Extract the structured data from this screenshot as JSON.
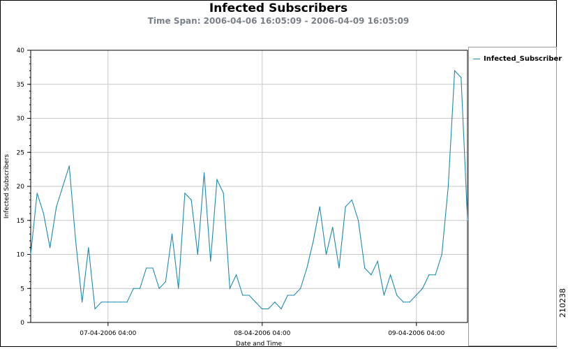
{
  "chart_data": {
    "type": "line",
    "title": "Infected Subscribers",
    "subtitle": "Time Span: 2006-04-06 16:05:09 - 2006-04-09 16:05:09",
    "xlabel": "Date and Time",
    "ylabel": "Infected Subscribers",
    "ylim": [
      0,
      40
    ],
    "yticks": [
      "0",
      "5",
      "10",
      "15",
      "20",
      "25",
      "30",
      "35",
      "40"
    ],
    "xticks": [
      "07-04-2006 04:00",
      "08-04-2006 04:00",
      "09-04-2006 04:00"
    ],
    "grid": true,
    "legend_position": "right",
    "series": [
      {
        "name": "Infected_Subscriber",
        "color": "#1a8bb0",
        "values": [
          10,
          19,
          16,
          11,
          17,
          20,
          23,
          12,
          3,
          11,
          2,
          3,
          3,
          3,
          3,
          3,
          5,
          5,
          8,
          8,
          5,
          6,
          13,
          5,
          19,
          18,
          10,
          22,
          9,
          21,
          19,
          5,
          7,
          4,
          4,
          3,
          2,
          2,
          3,
          2,
          4,
          4,
          5,
          8,
          12,
          17,
          10,
          14,
          8,
          17,
          18,
          15,
          8,
          7,
          9,
          4,
          7,
          4,
          3,
          3,
          4,
          5,
          7,
          7,
          10,
          20,
          37,
          36,
          15
        ]
      }
    ]
  },
  "side_code": "210238"
}
